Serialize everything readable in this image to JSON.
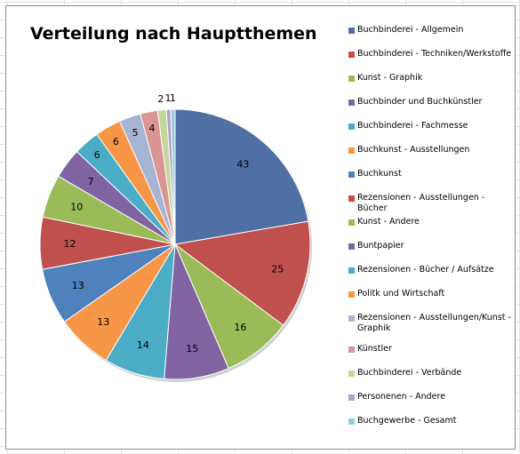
{
  "chart_data": {
    "type": "pie",
    "title": "Verteilung nach Hauptthemen",
    "legend_position": "right",
    "categories": [
      "Buchbinderei - Allgemein",
      "Buchbinderei - Techniken/Werkstoffe",
      "Kunst -  Graphik",
      "Buchbinder und Buchkünstler",
      "Buchbinderei - Fachmesse",
      "Buchkunst -  Ausstellungen",
      "Buchkunst",
      "Rezensionen - Ausstellungen - Bücher",
      "Kunst - Andere",
      "Buntpapier",
      "Rezensionen - Bücher / Aufsätze",
      "Politk und Wirtschaft",
      "Rezensionen - Ausstellungen/Kunst - Graphik",
      "Künstler",
      "Buchbinderei - Verbände",
      "Personenen - Andere",
      "Buchgewerbe - Gesamt"
    ],
    "values": [
      43,
      25,
      16,
      15,
      14,
      13,
      13,
      12,
      10,
      7,
      6,
      6,
      5,
      4,
      2,
      1,
      1
    ],
    "colors": [
      "#4f6fa5",
      "#c0504d",
      "#9bbb59",
      "#8064a2",
      "#4bacc6",
      "#f79646",
      "#4f81bd",
      "#c0504d",
      "#9bbb59",
      "#8064a2",
      "#4bacc6",
      "#f79646",
      "#a5b5d3",
      "#d99694",
      "#c3d69b",
      "#b3a2c7",
      "#93cddd"
    ]
  }
}
